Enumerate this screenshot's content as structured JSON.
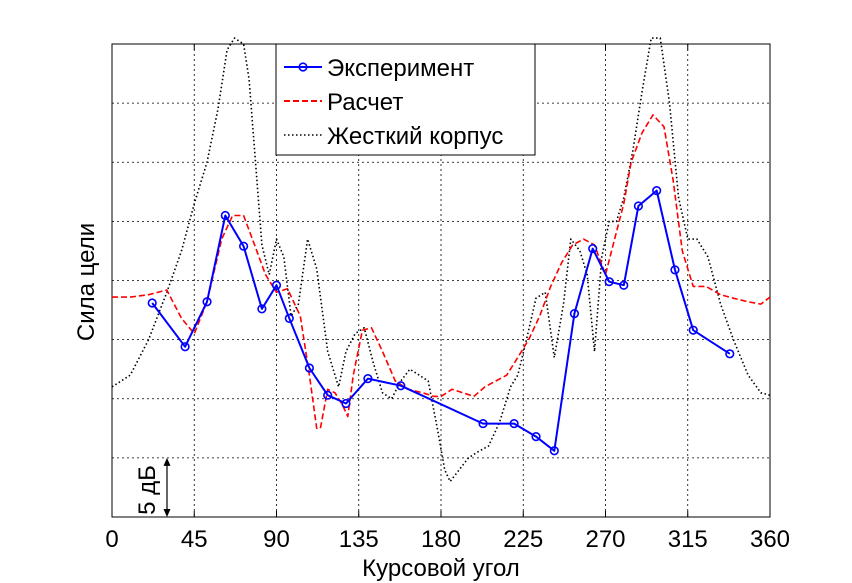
{
  "chart_data": {
    "type": "line",
    "xlabel": "Курсовой угол",
    "ylabel": "Сила цели",
    "xlim": [
      0,
      360
    ],
    "ylim": [
      0,
      40
    ],
    "x_ticks": [
      0,
      45,
      90,
      135,
      180,
      225,
      270,
      315,
      360
    ],
    "y_grid_step": 5,
    "grid": true,
    "scale_bar": {
      "label": "5 дБ",
      "value": 5
    },
    "legend": {
      "placement": "top-center"
    },
    "colors": {
      "experiment": "#0000ff",
      "calc": "#ff0000",
      "rigid": "#000000"
    },
    "series": [
      {
        "name": "Эксперимент",
        "style": "solid-circle-markers",
        "color": "#0000ff",
        "x": [
          22,
          40,
          52,
          62,
          72,
          82,
          90,
          97,
          108,
          118,
          128,
          140,
          158,
          203,
          220,
          232,
          242,
          253,
          263,
          272,
          280,
          288,
          298,
          308,
          318,
          338
        ],
        "y": [
          18.1,
          14.4,
          18.2,
          25.5,
          22.9,
          17.6,
          19.6,
          16.8,
          12.6,
          10.3,
          9.6,
          11.7,
          11.1,
          7.9,
          7.9,
          6.8,
          5.6,
          17.2,
          22.7,
          19.9,
          19.6,
          26.3,
          27.6,
          20.9,
          15.8,
          13.8
        ]
      },
      {
        "name": "Расчет",
        "style": "dashed",
        "color": "#ff0000",
        "x": [
          0,
          10,
          20,
          30,
          38,
          45,
          52,
          60,
          66,
          72,
          78,
          84,
          90,
          96,
          103,
          108,
          112,
          114,
          118,
          122,
          126,
          129,
          132,
          137,
          142,
          148,
          155,
          162,
          170,
          176,
          180,
          186,
          192,
          198,
          204,
          210,
          216,
          222,
          228,
          234,
          240,
          246,
          252,
          258,
          264,
          270,
          275,
          280,
          284,
          290,
          296,
          302,
          307,
          312,
          318,
          325,
          333,
          340,
          348,
          355,
          360
        ],
        "y": [
          18.6,
          18.6,
          18.8,
          19.2,
          16.8,
          15.5,
          18.2,
          23.5,
          25.5,
          25.5,
          23.0,
          20.5,
          19.0,
          19.3,
          17.0,
          12.0,
          7.5,
          7.5,
          10.8,
          10.5,
          9.5,
          8.5,
          12.0,
          15.8,
          16.0,
          14.0,
          11.5,
          10.8,
          10.5,
          10.2,
          10.2,
          10.8,
          10.5,
          10.2,
          11.0,
          11.5,
          12.0,
          13.5,
          15.0,
          17.0,
          19.5,
          21.5,
          23.0,
          23.5,
          23.0,
          20.5,
          23.5,
          26.5,
          30.0,
          32.5,
          34.0,
          33.0,
          28.5,
          22.5,
          19.5,
          19.5,
          18.8,
          18.5,
          18.2,
          18.0,
          18.6
        ]
      },
      {
        "name": "Жесткий корпус",
        "style": "dotted",
        "color": "#000000",
        "x": [
          0,
          10,
          20,
          30,
          38,
          45,
          52,
          58,
          63,
          67,
          72,
          75,
          78,
          82,
          86,
          90,
          94,
          98,
          102,
          107,
          112,
          118,
          124,
          128,
          133,
          138,
          143,
          148,
          153,
          158,
          163,
          168,
          173,
          178,
          182,
          185,
          190,
          195,
          200,
          206,
          212,
          218,
          222,
          226,
          232,
          237,
          242,
          247,
          251,
          256,
          260,
          264,
          268,
          272,
          276,
          280,
          285,
          290,
          295,
          300,
          305,
          310,
          315,
          320,
          326,
          333,
          340,
          348,
          355,
          360
        ],
        "y": [
          11.0,
          12.0,
          15.0,
          19.0,
          22.5,
          26.5,
          30.0,
          34.5,
          39.5,
          40.5,
          40.0,
          37.0,
          31.0,
          23.0,
          20.5,
          23.5,
          22.0,
          17.0,
          18.0,
          23.5,
          21.0,
          14.0,
          11.0,
          14.0,
          15.5,
          16.0,
          13.0,
          10.5,
          10.0,
          11.5,
          12.5,
          12.0,
          11.5,
          7.5,
          4.0,
          3.0,
          4.0,
          5.0,
          5.5,
          6.0,
          8.0,
          11.0,
          12.0,
          14.5,
          18.5,
          19.0,
          13.5,
          18.0,
          23.5,
          22.5,
          20.5,
          14.0,
          22.0,
          25.0,
          25.0,
          27.0,
          31.0,
          36.0,
          40.5,
          40.5,
          35.0,
          27.0,
          23.5,
          23.5,
          22.0,
          18.0,
          15.0,
          12.0,
          10.5,
          10.3
        ]
      }
    ]
  }
}
